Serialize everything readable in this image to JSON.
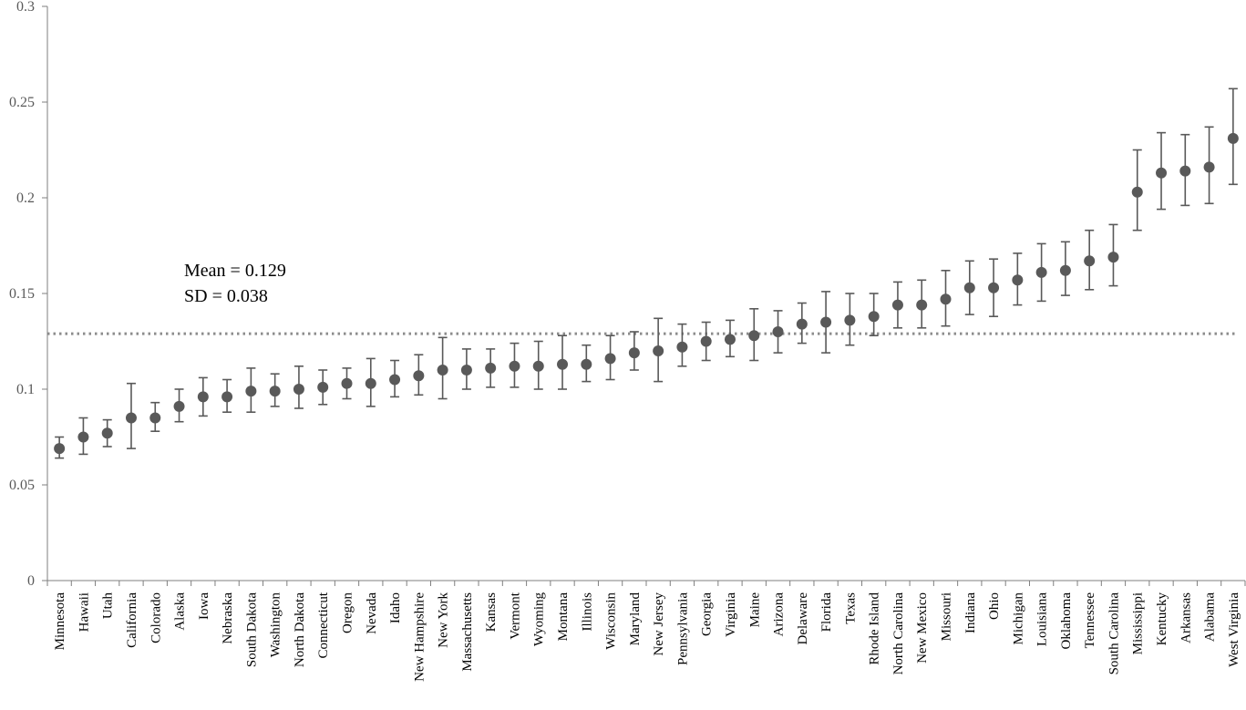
{
  "chart_data": {
    "type": "scatter",
    "title": "",
    "xlabel": "",
    "ylabel": "",
    "ylim": [
      0,
      0.3
    ],
    "yticks": [
      "0",
      "0.05",
      "0.1",
      "0.15",
      "0.2",
      "0.25",
      "0.3"
    ],
    "grid": false,
    "legend": "none",
    "colors": {
      "point": "#595959",
      "errorbar": "#595959",
      "mean_line": "#8c8c8c",
      "axis": "#7f7f7f"
    },
    "mean_value": 0.129,
    "annotations": [
      "Mean = 0.129",
      "SD = 0.038"
    ],
    "categories": [
      "Minnesota",
      "Hawaii",
      "Utah",
      "California",
      "Colorado",
      "Alaska",
      "Iowa",
      "Nebraska",
      "South Dakota",
      "Washington",
      "North Dakota",
      "Connecticut",
      "Oregon",
      "Nevada",
      "Idaho",
      "New Hampshire",
      "New York",
      "Massachusetts",
      "Kansas",
      "Vermont",
      "Wyoming",
      "Montana",
      "Illinois",
      "Wisconsin",
      "Maryland",
      "New Jersey",
      "Pennsylvania",
      "Georgia",
      "Virginia",
      "Maine",
      "Arizona",
      "Delaware",
      "Florida",
      "Texas",
      "Rhode Island",
      "North Carolina",
      "New Mexico",
      "Missouri",
      "Indiana",
      "Ohio",
      "Michigan",
      "Louisiana",
      "Oklahoma",
      "Tennessee",
      "South Carolina",
      "Mississippi",
      "Kentucky",
      "Arkansas",
      "Alabama",
      "West Virginia"
    ],
    "values": [
      0.069,
      0.075,
      0.077,
      0.085,
      0.085,
      0.091,
      0.096,
      0.096,
      0.099,
      0.099,
      0.1,
      0.101,
      0.103,
      0.103,
      0.105,
      0.107,
      0.11,
      0.11,
      0.111,
      0.112,
      0.112,
      0.113,
      0.113,
      0.116,
      0.119,
      0.12,
      0.122,
      0.125,
      0.126,
      0.128,
      0.13,
      0.134,
      0.135,
      0.136,
      0.138,
      0.144,
      0.144,
      0.147,
      0.153,
      0.153,
      0.157,
      0.161,
      0.162,
      0.167,
      0.169,
      0.203,
      0.213,
      0.214,
      0.216,
      0.231
    ],
    "lower": [
      0.064,
      0.066,
      0.07,
      0.069,
      0.078,
      0.083,
      0.086,
      0.088,
      0.088,
      0.091,
      0.09,
      0.092,
      0.095,
      0.091,
      0.096,
      0.097,
      0.095,
      0.1,
      0.101,
      0.101,
      0.1,
      0.1,
      0.104,
      0.105,
      0.11,
      0.104,
      0.112,
      0.115,
      0.117,
      0.115,
      0.119,
      0.124,
      0.119,
      0.123,
      0.128,
      0.132,
      0.132,
      0.133,
      0.139,
      0.138,
      0.144,
      0.146,
      0.149,
      0.152,
      0.154,
      0.183,
      0.194,
      0.196,
      0.197,
      0.207
    ],
    "upper": [
      0.075,
      0.085,
      0.084,
      0.103,
      0.093,
      0.1,
      0.106,
      0.105,
      0.111,
      0.108,
      0.112,
      0.11,
      0.111,
      0.116,
      0.115,
      0.118,
      0.127,
      0.121,
      0.121,
      0.124,
      0.125,
      0.128,
      0.123,
      0.128,
      0.13,
      0.137,
      0.134,
      0.135,
      0.136,
      0.142,
      0.141,
      0.145,
      0.151,
      0.15,
      0.15,
      0.156,
      0.157,
      0.162,
      0.167,
      0.168,
      0.171,
      0.176,
      0.177,
      0.183,
      0.186,
      0.225,
      0.234,
      0.233,
      0.237,
      0.257
    ]
  }
}
